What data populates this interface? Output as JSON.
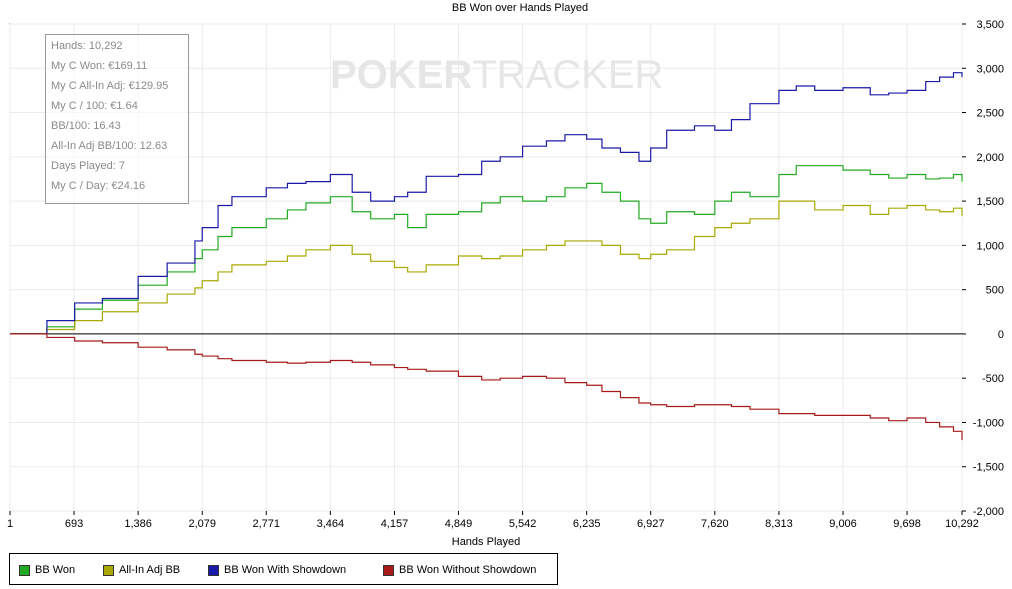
{
  "chart_data": {
    "type": "line",
    "title": "BB Won over Hands Played",
    "xlabel": "Hands Played",
    "ylabel": "",
    "xlim": [
      1,
      10292
    ],
    "ylim": [
      -2000,
      3500
    ],
    "x_ticks": [
      "1",
      "693",
      "1,386",
      "2,079",
      "2,771",
      "3,464",
      "4,157",
      "4,849",
      "5,542",
      "6,235",
      "6,927",
      "7,620",
      "8,313",
      "9,006",
      "9,698",
      "10,292"
    ],
    "x_tick_values": [
      1,
      693,
      1386,
      2079,
      2771,
      3464,
      4157,
      4849,
      5542,
      6235,
      6927,
      7620,
      8313,
      9006,
      9698,
      10292
    ],
    "y_ticks": [
      "3,500",
      "3,000",
      "2,500",
      "2,000",
      "1,500",
      "1,000",
      "500",
      "0",
      "-500",
      "-1,000",
      "-1,500",
      "-2,000"
    ],
    "y_tick_values": [
      3500,
      3000,
      2500,
      2000,
      1500,
      1000,
      500,
      0,
      -500,
      -1000,
      -1500,
      -2000
    ],
    "grid": true,
    "legend_placement": "bottom-left",
    "series": [
      {
        "name": "BB Won",
        "color": "#22aa22",
        "x": [
          1,
          250,
          400,
          700,
          1000,
          1386,
          1700,
          2000,
          2079,
          2250,
          2400,
          2771,
          3000,
          3200,
          3464,
          3700,
          3900,
          4157,
          4300,
          4500,
          4849,
          5100,
          5300,
          5542,
          5800,
          6000,
          6235,
          6400,
          6600,
          6800,
          6927,
          7100,
          7400,
          7620,
          7800,
          8000,
          8313,
          8500,
          8700,
          9006,
          9300,
          9500,
          9698,
          9900,
          10050,
          10200,
          10292
        ],
        "y": [
          0,
          0,
          80,
          280,
          380,
          550,
          700,
          850,
          950,
          1100,
          1200,
          1300,
          1400,
          1480,
          1550,
          1380,
          1300,
          1350,
          1200,
          1350,
          1380,
          1480,
          1550,
          1500,
          1550,
          1650,
          1700,
          1600,
          1500,
          1300,
          1250,
          1380,
          1350,
          1500,
          1600,
          1550,
          1800,
          1900,
          1900,
          1850,
          1800,
          1760,
          1800,
          1750,
          1760,
          1800,
          1720
        ]
      },
      {
        "name": "All-In Adj BB",
        "color": "#a8a800",
        "x": [
          1,
          250,
          400,
          700,
          1000,
          1386,
          1700,
          2000,
          2079,
          2250,
          2400,
          2771,
          3000,
          3200,
          3464,
          3700,
          3900,
          4157,
          4300,
          4500,
          4849,
          5100,
          5300,
          5542,
          5800,
          6000,
          6235,
          6400,
          6600,
          6800,
          6927,
          7100,
          7400,
          7620,
          7800,
          8000,
          8313,
          8500,
          8700,
          9006,
          9300,
          9500,
          9698,
          9900,
          10050,
          10200,
          10292
        ],
        "y": [
          0,
          0,
          50,
          150,
          250,
          350,
          450,
          520,
          600,
          700,
          780,
          820,
          880,
          950,
          1000,
          900,
          820,
          750,
          700,
          780,
          880,
          850,
          880,
          950,
          1000,
          1050,
          1050,
          1000,
          900,
          850,
          900,
          950,
          1100,
          1200,
          1250,
          1300,
          1500,
          1500,
          1400,
          1450,
          1350,
          1420,
          1450,
          1400,
          1380,
          1420,
          1330
        ]
      },
      {
        "name": "BB Won With Showdown",
        "color": "#1a1aa8",
        "x": [
          1,
          250,
          400,
          700,
          1000,
          1386,
          1700,
          2000,
          2079,
          2250,
          2400,
          2771,
          3000,
          3200,
          3464,
          3700,
          3900,
          4157,
          4300,
          4500,
          4849,
          5100,
          5300,
          5542,
          5800,
          6000,
          6235,
          6400,
          6600,
          6800,
          6927,
          7100,
          7400,
          7620,
          7800,
          8000,
          8313,
          8500,
          8700,
          9006,
          9300,
          9500,
          9698,
          9900,
          10050,
          10200,
          10292
        ],
        "y": [
          0,
          0,
          150,
          350,
          400,
          650,
          800,
          1050,
          1200,
          1450,
          1550,
          1650,
          1700,
          1720,
          1800,
          1600,
          1500,
          1550,
          1600,
          1780,
          1800,
          1950,
          2000,
          2120,
          2180,
          2250,
          2200,
          2100,
          2050,
          1950,
          2100,
          2300,
          2350,
          2300,
          2420,
          2600,
          2750,
          2800,
          2750,
          2780,
          2700,
          2720,
          2750,
          2850,
          2900,
          2950,
          2900
        ]
      },
      {
        "name": "BB Won Without Showdown",
        "color": "#a81a1a",
        "x": [
          1,
          250,
          400,
          700,
          1000,
          1386,
          1700,
          2000,
          2079,
          2250,
          2400,
          2771,
          3000,
          3200,
          3464,
          3700,
          3900,
          4157,
          4300,
          4500,
          4849,
          5100,
          5300,
          5542,
          5800,
          6000,
          6235,
          6400,
          6600,
          6800,
          6927,
          7100,
          7400,
          7620,
          7800,
          8000,
          8313,
          8500,
          8700,
          9006,
          9300,
          9500,
          9698,
          9900,
          10050,
          10200,
          10292
        ],
        "y": [
          0,
          0,
          -40,
          -80,
          -100,
          -150,
          -180,
          -230,
          -250,
          -280,
          -300,
          -320,
          -330,
          -320,
          -300,
          -320,
          -350,
          -380,
          -400,
          -420,
          -480,
          -520,
          -500,
          -480,
          -500,
          -550,
          -580,
          -650,
          -720,
          -780,
          -800,
          -820,
          -800,
          -800,
          -820,
          -850,
          -900,
          -900,
          -920,
          -920,
          -950,
          -980,
          -950,
          -1000,
          -1050,
          -1100,
          -1200
        ]
      }
    ]
  },
  "stats": [
    "Hands: 10,292",
    "My C Won: €169.11",
    "My C All-In Adj: €129.95",
    "My C / 100: €1.64",
    "BB/100: 16.43",
    "All-In Adj BB/100: 12.63",
    "Days Played: 7",
    "My C / Day: €24.16"
  ],
  "watermark": {
    "part1": "POKER",
    "part2": "TRACKER"
  }
}
